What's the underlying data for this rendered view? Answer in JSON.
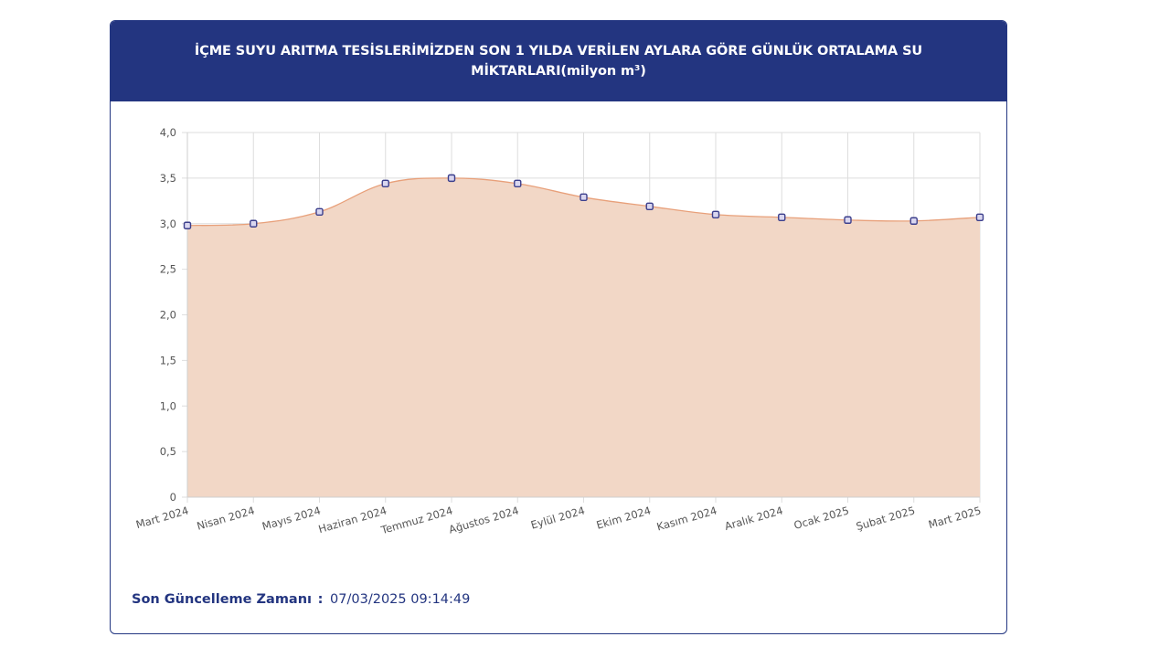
{
  "header": {
    "title": "İÇME SUYU ARITMA TESİSLERİMİZDEN SON 1 YILDA VERİLEN AYLARA GÖRE GÜNLÜK ORTALAMA SU MİKTARLARI(milyon m³)"
  },
  "footer": {
    "label": "Son Güncelleme Zamanı",
    "separator": ":",
    "value": "07/03/2025 09:14:49"
  },
  "chart_data": {
    "type": "area",
    "title": "İÇME SUYU ARITMA TESİSLERİMİZDEN SON 1 YILDA VERİLEN AYLARA GÖRE GÜNLÜK ORTALAMA SU MİKTARLARI(milyon m³)",
    "xlabel": "",
    "ylabel": "",
    "categories": [
      "Mart 2024",
      "Nisan 2024",
      "Mayıs 2024",
      "Haziran 2024",
      "Temmuz 2024",
      "Ağustos 2024",
      "Eylül 2024",
      "Ekim 2024",
      "Kasım 2024",
      "Aralık 2024",
      "Ocak 2025",
      "Şubat 2025",
      "Mart 2025"
    ],
    "series": [
      {
        "values": [
          2.98,
          3.0,
          3.13,
          3.44,
          3.5,
          3.44,
          3.29,
          3.19,
          3.1,
          3.07,
          3.04,
          3.03,
          3.07
        ]
      }
    ],
    "ylim": [
      0,
      4
    ],
    "yticks": [
      0,
      0.5,
      1.0,
      1.5,
      2.0,
      2.5,
      3.0,
      3.5,
      4.0
    ],
    "ytick_labels": [
      "0",
      "0,5",
      "1,0",
      "1,5",
      "2,0",
      "2,5",
      "3,0",
      "3,5",
      "4,0"
    ],
    "grid": true,
    "legend": "none",
    "colors": {
      "fill": "#f2d7c6",
      "line": "#e8a07a",
      "marker_fill": "#d9d6ef",
      "marker_stroke": "#3c3f8c",
      "grid": "#dedede"
    }
  }
}
